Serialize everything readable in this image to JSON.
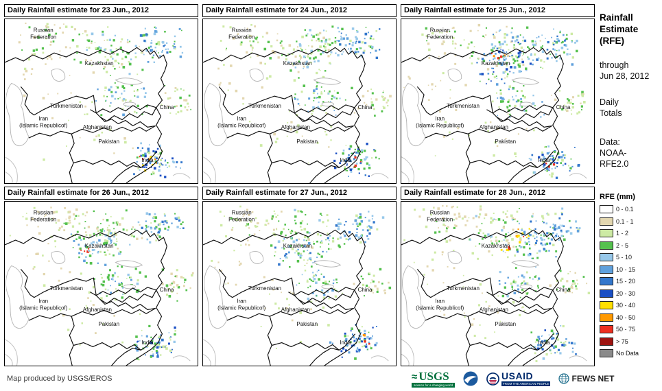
{
  "panels": [
    {
      "title": "Daily Rainfall estimate for 23 Jun., 2012"
    },
    {
      "title": "Daily Rainfall estimate for 24 Jun., 2012"
    },
    {
      "title": "Daily Rainfall estimate for 25 Jun., 2012"
    },
    {
      "title": "Daily Rainfall estimate for 26 Jun., 2012"
    },
    {
      "title": "Daily Rainfall estimate for 27 Jun., 2012"
    },
    {
      "title": "Daily Rainfall estimate for 28 Jun., 2012"
    }
  ],
  "map_labels": [
    {
      "text": "Russian Federation"
    },
    {
      "text": "Kazakhstan"
    },
    {
      "text": "Turkmenistan"
    },
    {
      "text": "China"
    },
    {
      "text": "Iran\n(Islamic Republicof)"
    },
    {
      "text": "Afghanistan"
    },
    {
      "text": "Pakistan"
    },
    {
      "text": "India"
    }
  ],
  "sidebar": {
    "title": "Rainfall\nEstimate\n(RFE)",
    "period": "through\nJun 28, 2012",
    "totals": "Daily\nTotals",
    "source": "Data:\nNOAA-\nRFE2.0",
    "legend_title": "RFE (mm)",
    "legend": [
      {
        "label": "0 - 0.1",
        "color": "#ffffff"
      },
      {
        "label": "0.1 - 1",
        "color": "#e3d7b0"
      },
      {
        "label": "1 - 2",
        "color": "#cdeaa4"
      },
      {
        "label": "2 - 5",
        "color": "#55c14e"
      },
      {
        "label": "5 - 10",
        "color": "#97c8ea"
      },
      {
        "label": "10 - 15",
        "color": "#5fa0dc"
      },
      {
        "label": "15 - 20",
        "color": "#3377cc"
      },
      {
        "label": "20 - 30",
        "color": "#1a4fc4"
      },
      {
        "label": "30 - 40",
        "color": "#ffdf00"
      },
      {
        "label": "40 - 50",
        "color": "#ff9900"
      },
      {
        "label": "50 - 75",
        "color": "#ee3020"
      },
      {
        "label": "> 75",
        "color": "#9e1410"
      },
      {
        "label": "No Data",
        "color": "#8a8a8a"
      }
    ]
  },
  "footer": {
    "credit": "Map produced by USGS/EROS",
    "logos": {
      "usgs": {
        "name": "USGS",
        "tagline": "science for a changing world"
      },
      "noaa": {
        "name": "NOAA"
      },
      "usaid": {
        "name": "USAID",
        "tagline": "FROM THE AMERICAN PEOPLE"
      },
      "fewsnet": {
        "name": "FEWS NET"
      }
    }
  }
}
